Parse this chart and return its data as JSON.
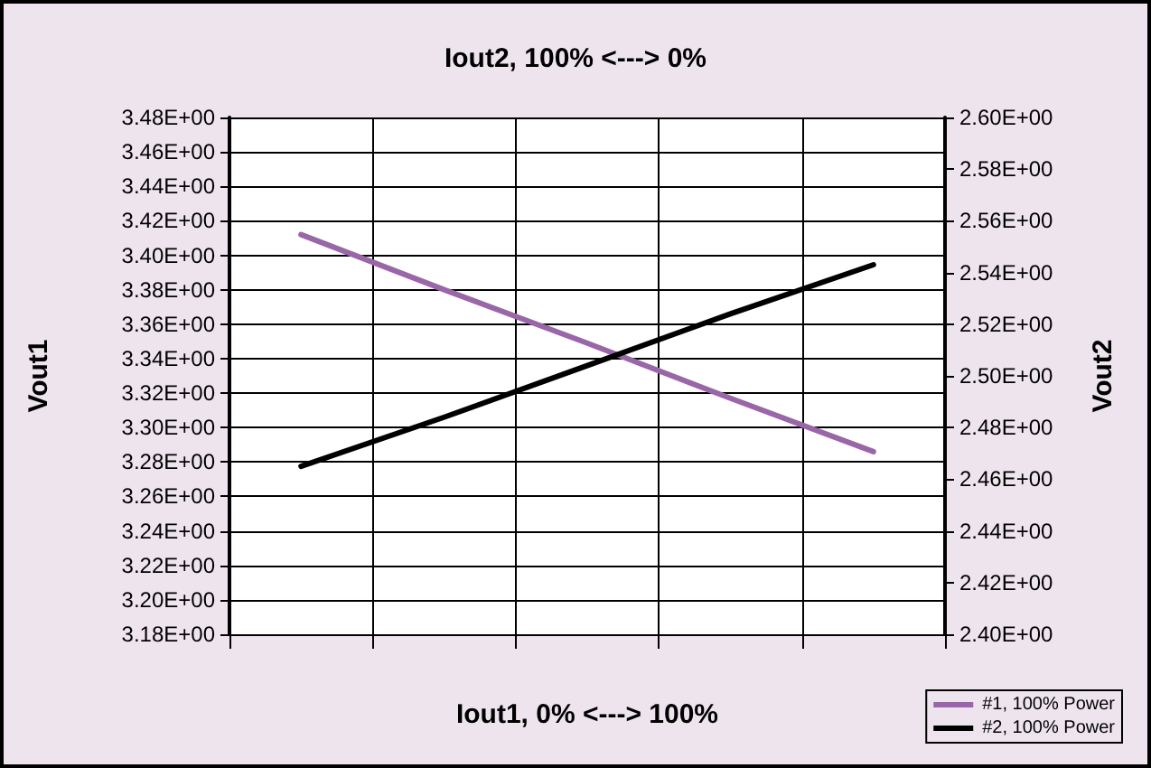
{
  "chart_data": {
    "type": "line",
    "title": "Iout2, 100% <---> 0%",
    "xlabel": "Iout1, 0% <---> 100%",
    "ylabel": "Vout1",
    "y2label": "Vout2",
    "categories": [
      null,
      null,
      null,
      null,
      null
    ],
    "ylim": [
      3.18,
      3.48
    ],
    "yticks": [
      {
        "value": 3.18,
        "label": "3.18E+00"
      },
      {
        "value": 3.2,
        "label": "3.20E+00"
      },
      {
        "value": 3.22,
        "label": "3.22E+00"
      },
      {
        "value": 3.24,
        "label": "3.24E+00"
      },
      {
        "value": 3.26,
        "label": "3.26E+00"
      },
      {
        "value": 3.28,
        "label": "3.28E+00"
      },
      {
        "value": 3.3,
        "label": "3.30E+00"
      },
      {
        "value": 3.32,
        "label": "3.32E+00"
      },
      {
        "value": 3.34,
        "label": "3.34E+00"
      },
      {
        "value": 3.36,
        "label": "3.36E+00"
      },
      {
        "value": 3.38,
        "label": "3.38E+00"
      },
      {
        "value": 3.4,
        "label": "3.40E+00"
      },
      {
        "value": 3.42,
        "label": "3.42E+00"
      },
      {
        "value": 3.44,
        "label": "3.44E+00"
      },
      {
        "value": 3.46,
        "label": "3.46E+00"
      },
      {
        "value": 3.48,
        "label": "3.48E+00"
      }
    ],
    "y2lim": [
      2.4,
      2.6
    ],
    "y2ticks": [
      {
        "value": 2.4,
        "label": "2.40E+00"
      },
      {
        "value": 2.42,
        "label": "2.42E+00"
      },
      {
        "value": 2.44,
        "label": "2.44E+00"
      },
      {
        "value": 2.46,
        "label": "2.46E+00"
      },
      {
        "value": 2.48,
        "label": "2.48E+00"
      },
      {
        "value": 2.5,
        "label": "2.50E+00"
      },
      {
        "value": 2.52,
        "label": "2.52E+00"
      },
      {
        "value": 2.54,
        "label": "2.54E+00"
      },
      {
        "value": 2.56,
        "label": "2.56E+00"
      },
      {
        "value": 2.58,
        "label": "2.58E+00"
      },
      {
        "value": 2.6,
        "label": "2.60E+00"
      }
    ],
    "series": [
      {
        "name": "#1, 100% Power",
        "color": "#9966a8",
        "values": [
          3.412,
          3.38,
          3.349,
          3.317,
          3.286
        ]
      },
      {
        "name": "#2, 100% Power",
        "color": "#000000",
        "axis": "y2",
        "values": [
          2.465,
          2.484,
          2.504,
          2.524,
          2.543
        ]
      }
    ],
    "grid": true,
    "legend": "bottom right",
    "marker": "none",
    "line_style": "solid"
  }
}
